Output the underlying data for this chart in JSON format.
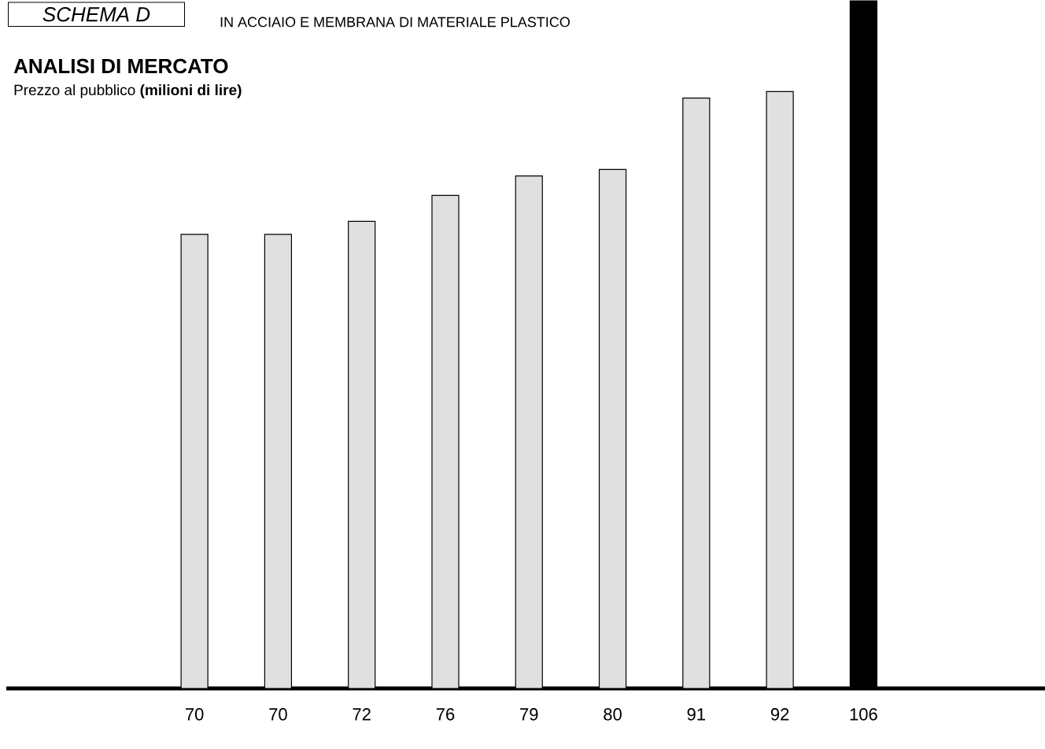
{
  "chart_data": {
    "type": "bar",
    "title": "ANALISI DI MERCATO",
    "subtitle": "Prezzo al pubblico **(milioni di lire)**",
    "annotations": [
      "SCHEMA D",
      "IN ACCIAIO E MEMBRANA DI MATERIALE PLASTICO"
    ],
    "categories": [
      null,
      null,
      null,
      null,
      null,
      null,
      null,
      null,
      null
    ],
    "values": [
      70,
      70,
      72,
      76,
      79,
      80,
      91,
      92,
      106
    ],
    "colors": [
      "#e0e0e0",
      "#e0e0e0",
      "#e0e0e0",
      "#e0e0e0",
      "#e0e0e0",
      "#e0e0e0",
      "#e0e0e0",
      "#e0e0e0",
      "#000000"
    ],
    "data_labels": true
  }
}
